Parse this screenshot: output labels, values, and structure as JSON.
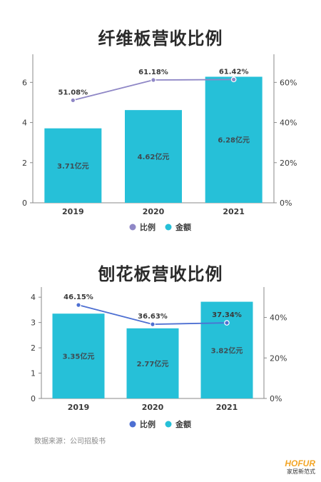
{
  "charts": [
    {
      "title": "纤维板营收比例",
      "legend": {
        "ratio": "比例",
        "amount": "金额"
      }
    },
    {
      "title": "刨花板营收比例",
      "legend": {
        "ratio": "比例",
        "amount": "金额"
      }
    }
  ],
  "source": "数据来源：公司招股书",
  "logo": {
    "brand": "HOFUR",
    "sub": "家居新范式"
  },
  "colors": {
    "bar": "#26c0d8",
    "line1": "#8f87c6",
    "line2": "#4d6fd2",
    "axis": "#8a8a8a",
    "text": "#3a3a3a"
  },
  "chart_data": [
    {
      "type": "bar",
      "title": "纤维板营收比例",
      "categories": [
        "2019",
        "2020",
        "2021"
      ],
      "series": [
        {
          "name": "金额",
          "type": "bar",
          "values": [
            3.71,
            4.62,
            6.28
          ],
          "labels": [
            "3.71亿元",
            "4.62亿元",
            "6.28亿元"
          ]
        },
        {
          "name": "比例",
          "type": "line",
          "values": [
            51.08,
            61.18,
            61.42
          ],
          "labels": [
            "51.08%",
            "61.18%",
            "61.42%"
          ]
        }
      ],
      "yticks_left": [
        "0",
        "2",
        "4",
        "6"
      ],
      "yticks_right": [
        "0%",
        "20%",
        "40%",
        "60%"
      ],
      "ylim_left": [
        0,
        7.4
      ],
      "ylim_right": [
        0,
        74
      ]
    },
    {
      "type": "bar",
      "title": "刨花板营收比例",
      "categories": [
        "2019",
        "2020",
        "2021"
      ],
      "series": [
        {
          "name": "金额",
          "type": "bar",
          "values": [
            3.35,
            2.77,
            3.82
          ],
          "labels": [
            "3.35亿元",
            "2.77亿元",
            "3.82亿元"
          ]
        },
        {
          "name": "比例",
          "type": "line",
          "values": [
            46.15,
            36.63,
            37.34
          ],
          "labels": [
            "46.15%",
            "36.63%",
            "37.34%"
          ]
        }
      ],
      "yticks_left": [
        "0",
        "1",
        "2",
        "3",
        "4"
      ],
      "yticks_right": [
        "0%",
        "20%",
        "40%"
      ],
      "ylim_left": [
        0,
        4.4
      ],
      "ylim_right": [
        0,
        55
      ]
    }
  ]
}
